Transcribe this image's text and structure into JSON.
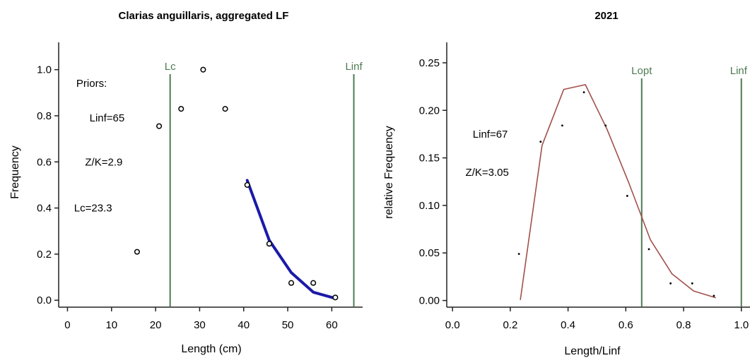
{
  "chart_data": [
    {
      "type": "scatter",
      "title": "Clarias anguillaris, aggregated LF",
      "xlabel": "Length (cm)",
      "ylabel": "Frequency",
      "xlim": [
        -2,
        67
      ],
      "ylim": [
        -0.03,
        1.1
      ],
      "xticks": [
        0,
        10,
        20,
        30,
        40,
        50,
        60
      ],
      "xtick_labels": [
        "0",
        "10",
        "20",
        "30",
        "40",
        "50",
        "60"
      ],
      "yticks": [
        0,
        0.2,
        0.4,
        0.6,
        0.8,
        1.0
      ],
      "ytick_labels": [
        "0.0",
        "0.2",
        "0.4",
        "0.6",
        "0.8",
        "1.0"
      ],
      "points": [
        {
          "x": 15.8,
          "y": 0.21
        },
        {
          "x": 20.8,
          "y": 0.755
        },
        {
          "x": 25.8,
          "y": 0.83
        },
        {
          "x": 30.8,
          "y": 1.0
        },
        {
          "x": 35.8,
          "y": 0.83
        },
        {
          "x": 40.8,
          "y": 0.5
        },
        {
          "x": 45.8,
          "y": 0.245
        },
        {
          "x": 50.8,
          "y": 0.075
        },
        {
          "x": 55.8,
          "y": 0.075
        },
        {
          "x": 60.8,
          "y": 0.012
        }
      ],
      "fit_curve": [
        {
          "x": 40.8,
          "y": 0.52
        },
        {
          "x": 45.8,
          "y": 0.26
        },
        {
          "x": 50.8,
          "y": 0.12
        },
        {
          "x": 55.8,
          "y": 0.035
        },
        {
          "x": 60.8,
          "y": 0.008
        }
      ],
      "reference_lines": [
        {
          "label": "Lc",
          "x": 23.3,
          "label_align": "middle"
        },
        {
          "label": "Linf",
          "x": 65,
          "label_align": "middle"
        }
      ],
      "annotations": [
        {
          "text": "Priors:",
          "x": 2,
          "y": 0.94
        },
        {
          "text": "Linf=65",
          "x": 5,
          "y": 0.79
        },
        {
          "text": "Z/K=2.9",
          "x": 4,
          "y": 0.6
        },
        {
          "text": "Lc=23.3",
          "x": 1.5,
          "y": 0.4
        }
      ],
      "colors": {
        "points": "#000000",
        "fit": "#1a1aa8",
        "ref": "#4e7a53",
        "axis": "#222222"
      }
    },
    {
      "type": "line",
      "title": "2021",
      "xlabel": "Length/Linf",
      "ylabel": "relative Frequency",
      "xlim": [
        -0.02,
        1.03
      ],
      "ylim": [
        -0.007,
        0.27
      ],
      "xticks": [
        0,
        0.2,
        0.4,
        0.6,
        0.8,
        1.0
      ],
      "xtick_labels": [
        "0.0",
        "0.2",
        "0.4",
        "0.6",
        "0.8",
        "1.0"
      ],
      "yticks": [
        0,
        0.05,
        0.1,
        0.15,
        0.2,
        0.25
      ],
      "ytick_labels": [
        "0.00",
        "0.05",
        "0.10",
        "0.15",
        "0.20",
        "0.25"
      ],
      "line": [
        {
          "x": 0.235,
          "y": 0.001
        },
        {
          "x": 0.31,
          "y": 0.163
        },
        {
          "x": 0.385,
          "y": 0.222
        },
        {
          "x": 0.46,
          "y": 0.227
        },
        {
          "x": 0.535,
          "y": 0.18
        },
        {
          "x": 0.61,
          "y": 0.124
        },
        {
          "x": 0.685,
          "y": 0.064
        },
        {
          "x": 0.76,
          "y": 0.028
        },
        {
          "x": 0.835,
          "y": 0.01
        },
        {
          "x": 0.91,
          "y": 0.003
        }
      ],
      "points": [
        {
          "x": 0.23,
          "y": 0.049
        },
        {
          "x": 0.305,
          "y": 0.167
        },
        {
          "x": 0.38,
          "y": 0.184
        },
        {
          "x": 0.455,
          "y": 0.219
        },
        {
          "x": 0.53,
          "y": 0.184
        },
        {
          "x": 0.605,
          "y": 0.11
        },
        {
          "x": 0.68,
          "y": 0.054
        },
        {
          "x": 0.755,
          "y": 0.018
        },
        {
          "x": 0.83,
          "y": 0.018
        },
        {
          "x": 0.905,
          "y": 0.005
        }
      ],
      "reference_lines": [
        {
          "label": "Lopt",
          "x": 0.655,
          "label_align": "middle"
        },
        {
          "label": "Linf",
          "x": 1.0,
          "label_align": "start"
        }
      ],
      "annotations": [
        {
          "text": "Linf=67",
          "x": 0.07,
          "y": 0.175
        },
        {
          "text": "Z/K=3.05",
          "x": 0.045,
          "y": 0.135
        }
      ],
      "colors": {
        "points": "#000000",
        "line": "#a0504a",
        "ref": "#4e7a53",
        "axis": "#222222"
      }
    }
  ]
}
